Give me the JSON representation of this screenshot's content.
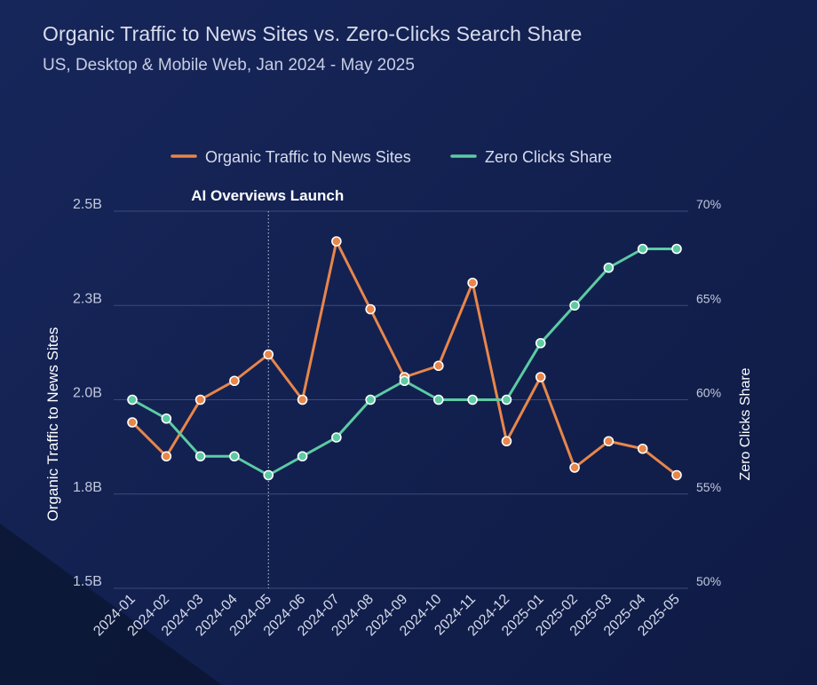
{
  "header": {
    "title": "Organic Traffic to News Sites vs. Zero-Clicks Search Share",
    "subtitle": "US, Desktop & Mobile Web, Jan 2024 - May 2025"
  },
  "chart_data": {
    "type": "line",
    "x": [
      "2024-01",
      "2024-02",
      "2024-03",
      "2024-04",
      "2024-05",
      "2024-06",
      "2024-07",
      "2024-08",
      "2024-09",
      "2024-10",
      "2024-11",
      "2024-12",
      "2025-01",
      "2025-02",
      "2025-03",
      "2025-04",
      "2025-05"
    ],
    "series": [
      {
        "name": "Organic Traffic to News Sites",
        "axis": "left",
        "color": "#e8864a",
        "values": [
          1.94,
          1.85,
          2.0,
          2.05,
          2.12,
          2.0,
          2.42,
          2.24,
          2.06,
          2.09,
          2.31,
          1.89,
          2.06,
          1.82,
          1.89,
          1.87,
          1.8
        ]
      },
      {
        "name": "Zero Clicks Share",
        "axis": "right",
        "color": "#5ccba4",
        "values": [
          60,
          59,
          57,
          57,
          56,
          57,
          58,
          60,
          61,
          60,
          60,
          60,
          63,
          65,
          67,
          68,
          68
        ]
      }
    ],
    "y_left": {
      "label": "Organic Traffic to News Sites",
      "range": [
        1.5,
        2.5
      ],
      "ticks": [
        1.5,
        1.75,
        2.0,
        2.25,
        2.5
      ],
      "tick_labels": [
        "1.5B",
        "1.8B",
        "2.0B",
        "2.3B",
        "2.5B"
      ]
    },
    "y_right": {
      "label": "Zero Clicks Share",
      "range": [
        50,
        70
      ],
      "ticks": [
        50,
        55,
        60,
        65,
        70
      ],
      "tick_labels": [
        "50%",
        "55%",
        "60%",
        "65%",
        "70%"
      ]
    },
    "annotations": [
      {
        "x": "2024-05",
        "text": "AI Overviews Launch",
        "style": "vertical-dotted-line"
      }
    ],
    "legend": {
      "position": "top-center"
    },
    "grid": {
      "horizontal": true,
      "vertical": false
    }
  }
}
